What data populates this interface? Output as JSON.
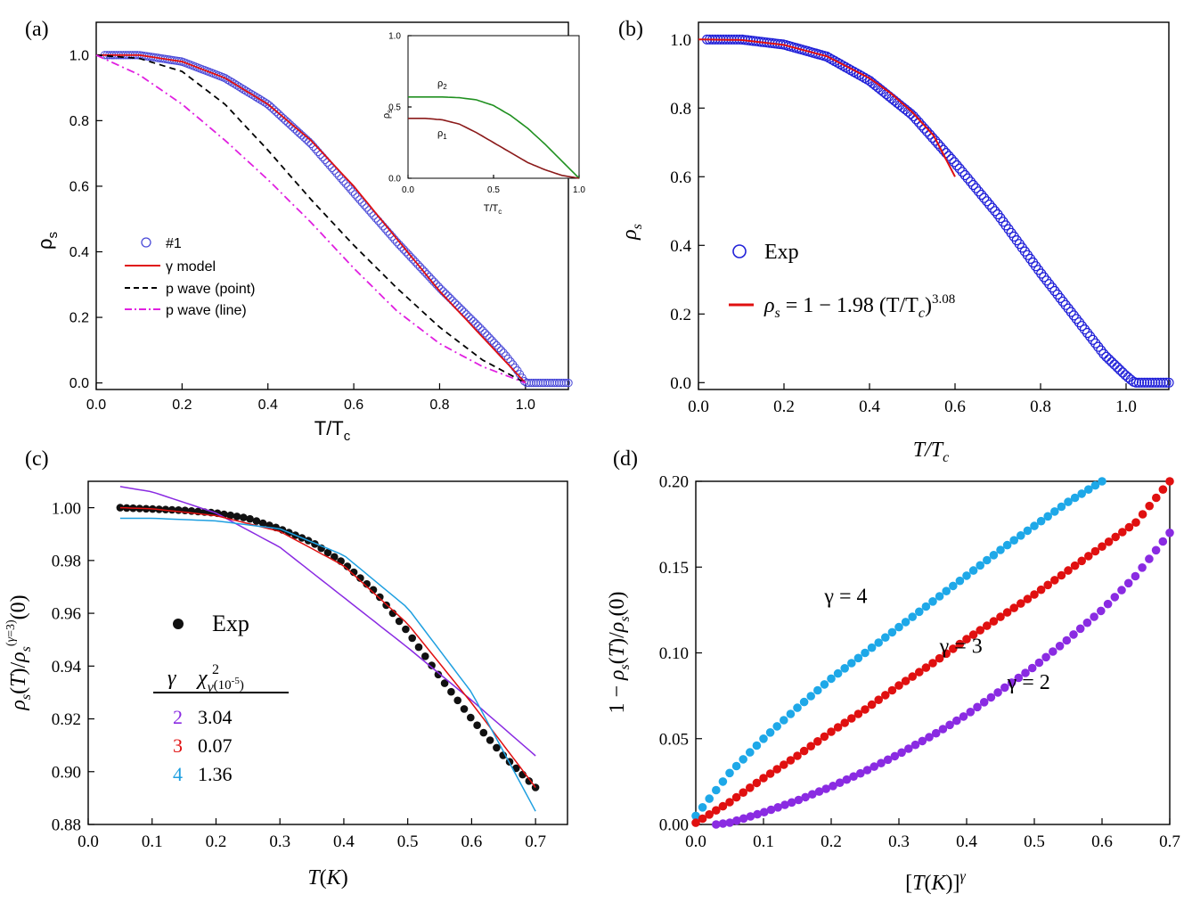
{
  "chart_data": [
    {
      "panel": "(a)",
      "type": "scatter",
      "xlabel": "T/T",
      "xlabel_sub": "c",
      "ylabel": "ρ",
      "ylabel_sub": "s",
      "xlim": [
        0,
        1.1
      ],
      "ylim": [
        -0.02,
        1.1
      ],
      "xticks": [
        "0.0",
        "0.2",
        "0.4",
        "0.6",
        "0.8",
        "1.0"
      ],
      "yticks": [
        "0.0",
        "0.2",
        "0.4",
        "0.6",
        "0.8",
        "1.0"
      ],
      "legend": [
        {
          "key": "exp",
          "label": "#1",
          "color": "#4a4ad8"
        },
        {
          "key": "gamma",
          "label": "γ model",
          "color": "#e01010"
        },
        {
          "key": "point",
          "label": "p wave (point)",
          "color": "#000000"
        },
        {
          "key": "line",
          "label": "p wave (line)",
          "color": "#e020e0"
        }
      ],
      "series": [
        {
          "key": "exp",
          "x": [
            0.02,
            0.1,
            0.2,
            0.3,
            0.4,
            0.5,
            0.6,
            0.7,
            0.8,
            0.9,
            0.95,
            0.98,
            1.0,
            1.05,
            1.1
          ],
          "y": [
            1.0,
            1.0,
            0.98,
            0.93,
            0.85,
            0.73,
            0.58,
            0.43,
            0.29,
            0.16,
            0.09,
            0.04,
            0.0,
            0.0,
            0.0
          ]
        },
        {
          "key": "gamma",
          "x": [
            0,
            0.1,
            0.2,
            0.3,
            0.4,
            0.5,
            0.6,
            0.7,
            0.8,
            0.9,
            1.0
          ],
          "y": [
            1.0,
            1.0,
            0.98,
            0.93,
            0.85,
            0.74,
            0.6,
            0.44,
            0.28,
            0.14,
            0.0
          ]
        },
        {
          "key": "point",
          "x": [
            0,
            0.1,
            0.2,
            0.3,
            0.4,
            0.5,
            0.6,
            0.7,
            0.8,
            0.9,
            1.0
          ],
          "y": [
            1.0,
            0.99,
            0.95,
            0.85,
            0.71,
            0.56,
            0.42,
            0.29,
            0.17,
            0.07,
            0.0
          ]
        },
        {
          "key": "line",
          "x": [
            0,
            0.1,
            0.2,
            0.3,
            0.4,
            0.5,
            0.6,
            0.7,
            0.8,
            0.9,
            1.0
          ],
          "y": [
            1.0,
            0.94,
            0.85,
            0.74,
            0.62,
            0.49,
            0.35,
            0.22,
            0.12,
            0.05,
            0.0
          ]
        }
      ],
      "inset": {
        "xlabel": "T/T",
        "xlabel_sub": "c",
        "ylabel": "ρ",
        "ylabel_sub": "s",
        "xlim": [
          0,
          1
        ],
        "ylim": [
          0,
          1
        ],
        "xticks": [
          "0.0",
          "0.5",
          "1.0"
        ],
        "yticks": [
          "0.0",
          "0.5",
          "1.0"
        ],
        "series": [
          {
            "key": "rho2",
            "name": "ρ",
            "sub": "2",
            "color": "#209020",
            "x": [
              0,
              0.1,
              0.2,
              0.3,
              0.4,
              0.5,
              0.6,
              0.7,
              0.8,
              0.9,
              1.0
            ],
            "y": [
              0.57,
              0.57,
              0.57,
              0.565,
              0.55,
              0.51,
              0.44,
              0.35,
              0.24,
              0.12,
              0.0
            ]
          },
          {
            "key": "rho1",
            "name": "ρ",
            "sub": "1",
            "color": "#8b1a1a",
            "x": [
              0,
              0.1,
              0.2,
              0.3,
              0.4,
              0.5,
              0.6,
              0.7,
              0.8,
              0.9,
              1.0
            ],
            "y": [
              0.42,
              0.42,
              0.41,
              0.38,
              0.32,
              0.25,
              0.18,
              0.11,
              0.06,
              0.02,
              0.0
            ]
          }
        ]
      }
    },
    {
      "panel": "(b)",
      "type": "scatter",
      "xlabel": "T/T",
      "xlabel_sub": "c",
      "ylabel": "ρ",
      "ylabel_sub": "s",
      "xlim": [
        0,
        1.1
      ],
      "ylim": [
        -0.02,
        1.05
      ],
      "xticks": [
        "0.0",
        "0.2",
        "0.4",
        "0.6",
        "0.8",
        "1.0"
      ],
      "yticks": [
        "0.0",
        "0.2",
        "0.4",
        "0.6",
        "0.8",
        "1.0"
      ],
      "legend": [
        {
          "key": "exp",
          "label": "Exp",
          "color": "#2020d8"
        },
        {
          "key": "fit",
          "label": "ρ",
          "label_sub": "s",
          "label_rest": " = 1 − 1.98 (T/T",
          "label_sub2": "c",
          "label_close": ")",
          "label_sup": "3.08",
          "color": "#e01010"
        }
      ],
      "series": [
        {
          "key": "exp",
          "x": [
            0.02,
            0.1,
            0.2,
            0.3,
            0.4,
            0.5,
            0.6,
            0.7,
            0.8,
            0.9,
            0.95,
            1.0,
            1.02,
            1.05,
            1.1
          ],
          "y": [
            1.0,
            1.0,
            0.985,
            0.95,
            0.88,
            0.78,
            0.64,
            0.49,
            0.32,
            0.16,
            0.08,
            0.02,
            0.0,
            0.0,
            0.0
          ]
        },
        {
          "key": "fit",
          "x": [
            0,
            0.1,
            0.2,
            0.3,
            0.4,
            0.45,
            0.5,
            0.55,
            0.6
          ],
          "y": [
            1.0,
            0.9984,
            0.984,
            0.951,
            0.887,
            0.843,
            0.788,
            0.72,
            0.6
          ]
        }
      ]
    },
    {
      "panel": "(c)",
      "type": "scatter",
      "xlabel": "T (K)",
      "ylabel": "ρ_s(T)/ρ_s^(γ=3)(0)",
      "xlim": [
        0,
        0.75
      ],
      "ylim": [
        0.88,
        1.01
      ],
      "xticks": [
        "0.0",
        "0.1",
        "0.2",
        "0.3",
        "0.4",
        "0.5",
        "0.6",
        "0.7"
      ],
      "yticks": [
        "0.88",
        "0.90",
        "0.92",
        "0.94",
        "0.96",
        "0.98",
        "1.00"
      ],
      "legend_exp": "Exp",
      "table_header": [
        "γ",
        "χ²ν(10⁻⁵)"
      ],
      "table": [
        {
          "gamma": "2",
          "chi": "3.04",
          "color": "#8a2be2"
        },
        {
          "gamma": "3",
          "chi": "0.07",
          "color": "#e01010"
        },
        {
          "gamma": "4",
          "chi": "1.36",
          "color": "#1e9fe0"
        }
      ],
      "series": [
        {
          "key": "exp",
          "x": [
            0.05,
            0.1,
            0.15,
            0.2,
            0.25,
            0.3,
            0.35,
            0.4,
            0.45,
            0.5,
            0.55,
            0.6,
            0.65,
            0.7
          ],
          "y": [
            1.0,
            0.9995,
            0.999,
            0.998,
            0.996,
            0.992,
            0.987,
            0.979,
            0.968,
            0.953,
            0.936,
            0.92,
            0.906,
            0.894
          ]
        },
        {
          "key": "g2",
          "x": [
            0.05,
            0.1,
            0.2,
            0.3,
            0.4,
            0.5,
            0.6,
            0.7
          ],
          "y": [
            1.008,
            1.006,
            0.998,
            0.985,
            0.966,
            0.947,
            0.927,
            0.906
          ]
        },
        {
          "key": "g3",
          "x": [
            0.05,
            0.1,
            0.2,
            0.3,
            0.4,
            0.5,
            0.6,
            0.7
          ],
          "y": [
            1.0,
            0.9996,
            0.997,
            0.991,
            0.978,
            0.956,
            0.926,
            0.894
          ]
        },
        {
          "key": "g4",
          "x": [
            0.05,
            0.1,
            0.2,
            0.3,
            0.4,
            0.5,
            0.6,
            0.7
          ],
          "y": [
            0.996,
            0.996,
            0.995,
            0.992,
            0.982,
            0.962,
            0.93,
            0.885
          ]
        }
      ]
    },
    {
      "panel": "(d)",
      "type": "scatter",
      "xlabel": "[T(K)]",
      "xlabel_sup": "γ",
      "ylabel": "1 − ρ_s(T)/ρ_s(0)",
      "xlim": [
        0,
        0.7
      ],
      "ylim": [
        0,
        0.2
      ],
      "xticks": [
        "0.0",
        "0.1",
        "0.2",
        "0.3",
        "0.4",
        "0.5",
        "0.6",
        "0.7"
      ],
      "yticks": [
        "0.00",
        "0.05",
        "0.10",
        "0.15",
        "0.20"
      ],
      "labels": [
        {
          "text": "γ = 4",
          "x": 0.19,
          "y": 0.129
        },
        {
          "text": "γ = 3",
          "x": 0.36,
          "y": 0.1
        },
        {
          "text": "γ = 2",
          "x": 0.46,
          "y": 0.079
        }
      ],
      "series": [
        {
          "key": "g4",
          "color": "#1ea8e8",
          "x": [
            0.0,
            0.02,
            0.05,
            0.1,
            0.15,
            0.2,
            0.25,
            0.3,
            0.35,
            0.4,
            0.45,
            0.5,
            0.55,
            0.6
          ],
          "y": [
            0.005,
            0.015,
            0.03,
            0.05,
            0.068,
            0.085,
            0.1,
            0.115,
            0.13,
            0.145,
            0.16,
            0.174,
            0.188,
            0.2
          ]
        },
        {
          "key": "g3",
          "color": "#e01010",
          "x": [
            0.0,
            0.05,
            0.1,
            0.15,
            0.2,
            0.25,
            0.3,
            0.35,
            0.4,
            0.45,
            0.5,
            0.55,
            0.6,
            0.65,
            0.7
          ],
          "y": [
            0.001,
            0.013,
            0.027,
            0.04,
            0.054,
            0.067,
            0.081,
            0.094,
            0.108,
            0.121,
            0.134,
            0.148,
            0.162,
            0.176,
            0.2
          ]
        },
        {
          "key": "g2",
          "color": "#8a2be2",
          "x": [
            0.03,
            0.05,
            0.1,
            0.15,
            0.2,
            0.25,
            0.3,
            0.35,
            0.4,
            0.45,
            0.5,
            0.55,
            0.6,
            0.65,
            0.7
          ],
          "y": [
            0.0,
            0.001,
            0.007,
            0.014,
            0.022,
            0.031,
            0.041,
            0.052,
            0.064,
            0.078,
            0.092,
            0.108,
            0.125,
            0.145,
            0.17
          ]
        }
      ]
    }
  ]
}
